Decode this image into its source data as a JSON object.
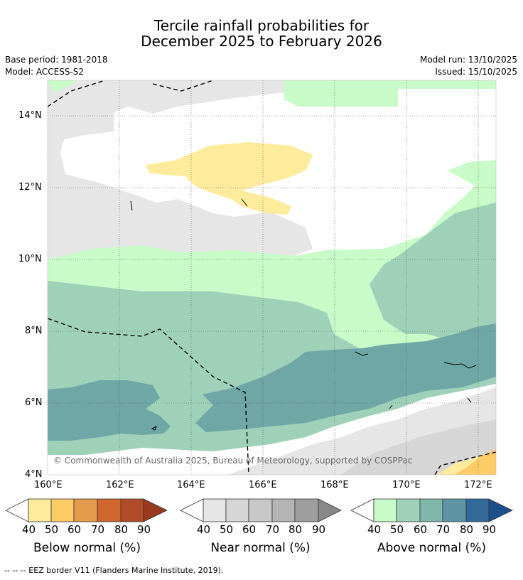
{
  "title": {
    "line1": "Tercile rainfall probabilities for",
    "line2": "December 2025 to February 2026"
  },
  "meta": {
    "base_period": "Base period: 1981-2018",
    "model": "Model: ACCESS-S2",
    "model_run": "Model run: 13/10/2025",
    "issued": "Issued: 15/10/2025"
  },
  "map": {
    "lat_labels": [
      "14°N",
      "12°N",
      "10°N",
      "8°N",
      "6°N",
      "4°N"
    ],
    "lon_labels": [
      "160°E",
      "162°E",
      "164°E",
      "166°E",
      "168°E",
      "170°E",
      "172°E"
    ],
    "copyright": "© Commonwealth of Australia 2025, Bureau of Meteorology, supported by COSPPac"
  },
  "legends": {
    "below": {
      "label": "Below normal (%)",
      "ticks": [
        "40",
        "50",
        "60",
        "70",
        "80",
        "90"
      ],
      "colors": [
        "#ffffff",
        "#feeb9c",
        "#fdcc67",
        "#e59b4c",
        "#d0672f",
        "#b24b28",
        "#983a20"
      ]
    },
    "near": {
      "label": "Near normal (%)",
      "ticks": [
        "40",
        "50",
        "60",
        "70",
        "80",
        "90"
      ],
      "colors": [
        "#ffffff",
        "#e6e6e6",
        "#d6d6d6",
        "#c8c8c8",
        "#b4b4b4",
        "#9e9e9e",
        "#888888"
      ]
    },
    "above": {
      "label": "Above normal (%)",
      "ticks": [
        "40",
        "50",
        "60",
        "70",
        "80",
        "90"
      ],
      "colors": [
        "#ffffff",
        "#c8fbc8",
        "#9fd1b9",
        "#7fb7aa",
        "#5f94a4",
        "#33689a",
        "#1d4f8a"
      ]
    }
  },
  "footer": "--  --  -- EEZ border V11 (Flanders Marine Institute, 2019)."
}
